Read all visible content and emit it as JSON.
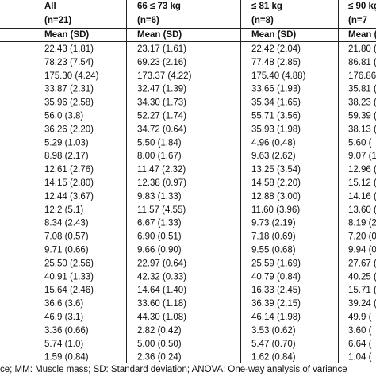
{
  "table": {
    "header": [
      [
        "All",
        "66 ≤ 73 kg",
        "≤ 81 kg",
        "≤ 90 kg"
      ],
      [
        "(n=21)",
        "(n=6)",
        "(n=8)",
        "(n=7"
      ],
      [
        "Mean (SD)",
        "Mean (SD)",
        "Mean (SD)",
        "Mean ("
      ]
    ],
    "rows": [
      [
        "22.43 (1.81)",
        "23.17 (1.61)",
        "22.42 (2.04)",
        "21.80 ("
      ],
      [
        "78.23 (7.54)",
        "69.23 (2.16)",
        "77.48 (2.85)",
        "86.81 ("
      ],
      [
        "175.30 (4.24)",
        "173.37 (4.22)",
        "175.40 (4.88)",
        "176.86"
      ],
      [
        "33.87 (2.31)",
        "32.47 (1.39)",
        "33.66 (1.93)",
        "35.81 ("
      ],
      [
        "35.96 (2.58)",
        "34.30 (1.73)",
        "35.34 (1.65)",
        "38.23 ("
      ],
      [
        "56.0 (3.8)",
        "52.27 (1.74)",
        "55.71 (3.56)",
        "59.39 ("
      ],
      [
        "36.26 (2.20)",
        "34.72 (0.64)",
        "35.93 (1.98)",
        "38.13 ("
      ],
      [
        "5.29 (1.03)",
        "5.50 (1.84)",
        "4.96 (0.48)",
        "5.60 ("
      ],
      [
        "8.98 (2.17)",
        "8.00 (1.67)",
        "9.63 (2.62)",
        "9.07 (1"
      ],
      [
        "12.61 (2.76)",
        "11.47 (2.32)",
        "13.25 (3.54)",
        "12.96 ("
      ],
      [
        "14.15 (2.80)",
        "12.38 (0.97)",
        "14.58 (2.20)",
        "15.12 ("
      ],
      [
        "12.44 (3.67)",
        "9.83 (1.33)",
        "12.88 (3.00)",
        "14.16 ("
      ],
      [
        "12.2 (5.1)",
        "11.57 (4.55)",
        "11.60 (3.96)",
        "13.60 ("
      ],
      [
        "8.34 (2.43)",
        "6.67 (1.33)",
        "9.73 (2.19)",
        "8.19 (2"
      ],
      [
        "7.08 (0.57)",
        "6.90 (0.51)",
        "7.18 (0.69)",
        "7.20 (0"
      ],
      [
        "9.71 (0.66)",
        "9.66 (0.90)",
        "9.55 (0.68)",
        "9.94 (0"
      ],
      [
        "25.50 (2.56)",
        "22.97 (0.64)",
        "25.59 (1.69)",
        "27.67 ("
      ],
      [
        "40.91 (1.33)",
        "42.32 (0.33)",
        "40.79 (0.84)",
        "40.25 ("
      ],
      [
        "15.64 (2.46)",
        "14.64 (1.40)",
        "16.33 (2.45)",
        "15.71 ("
      ],
      [
        "36.6 (3.6)",
        "33.60 (1.18)",
        "36.39 (2.15)",
        "39.24 ("
      ],
      [
        "46.9 (3.1)",
        "44.30 (1.08)",
        "46.14 (1.98)",
        "49.9 ("
      ],
      [
        "3.36 (0.66)",
        "2.82 (0.42)",
        "3.53 (0.62)",
        "3.60 ("
      ],
      [
        "5.74 (1.0)",
        "5.00 (0.50)",
        "5.47 (0.70)",
        "6.64 ("
      ],
      [
        "1.59 (0.84)",
        "2.36 (0.24)",
        "1.62 (0.84)",
        "1.04 ("
      ]
    ],
    "footnote": "ce; MM: Muscle mass; SD: Standard deviation; ANOVA: One-way analysis of variance"
  }
}
